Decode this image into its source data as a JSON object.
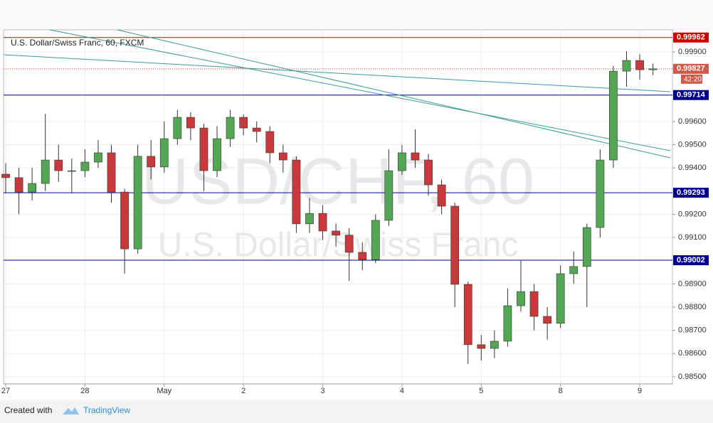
{
  "chart_data": {
    "type": "candlestick",
    "title": "U.S. Dollar/Swiss Franc, 60, FXCM",
    "watermark": "USD/CHF, 60",
    "watermark_subtitle": "U.S. Dollar/Swiss Franc",
    "x": [
      0,
      4,
      8,
      12,
      16,
      20,
      24,
      28,
      32,
      36,
      40,
      44,
      48,
      52,
      56,
      60,
      64,
      68,
      72,
      76,
      80,
      84,
      88,
      92,
      96,
      100,
      104,
      108,
      112,
      116,
      120,
      124,
      128,
      132,
      136,
      140,
      144,
      148,
      152,
      156,
      160,
      164,
      168,
      172,
      176,
      180,
      184,
      188,
      192,
      196
    ],
    "open": [
      0.99373,
      0.99358,
      0.99296,
      0.99333,
      0.99434,
      0.99388,
      0.99388,
      0.99425,
      0.99465,
      0.99296,
      0.99051,
      0.9945,
      0.99404,
      0.99526,
      0.99618,
      0.99572,
      0.99388,
      0.99526,
      0.99618,
      0.99572,
      0.99557,
      0.99465,
      0.99434,
      0.99159,
      0.99204,
      0.99128,
      0.9911,
      0.99036,
      0.99005,
      0.99174,
      0.99388,
      0.99465,
      0.99434,
      0.99327,
      0.99235,
      0.98898,
      0.98638,
      0.98622,
      0.98653,
      0.98806,
      0.98867,
      0.9876,
      0.9873,
      0.98944,
      0.98975,
      0.99143,
      0.99434,
      0.99817,
      0.99863,
      0.99823
    ],
    "high": [
      0.9942,
      0.994,
      0.994,
      0.99633,
      0.995,
      0.9944,
      0.9948,
      0.9952,
      0.995,
      0.9931,
      0.995,
      0.9952,
      0.996,
      0.9965,
      0.9964,
      0.9959,
      0.9958,
      0.9965,
      0.9963,
      0.996,
      0.9958,
      0.995,
      0.9945,
      0.9927,
      0.9924,
      0.9916,
      0.9914,
      0.9908,
      0.992,
      0.9948,
      0.995,
      0.99566,
      0.9946,
      0.9935,
      0.9925,
      0.9891,
      0.9868,
      0.987,
      0.9888,
      0.99,
      0.989,
      0.988,
      0.9898,
      0.9904,
      0.9916,
      0.9948,
      0.9984,
      0.99903,
      0.9989,
      0.9985
    ],
    "low": [
      0.9929,
      0.992,
      0.9926,
      0.993,
      0.9934,
      0.9929,
      0.9936,
      0.994,
      0.9925,
      0.98944,
      0.9903,
      0.9935,
      0.9938,
      0.995,
      0.9952,
      0.993,
      0.9936,
      0.9949,
      0.9954,
      0.9951,
      0.9942,
      0.9938,
      0.9912,
      0.9912,
      0.9909,
      0.9906,
      0.98913,
      0.9896,
      0.9899,
      0.9915,
      0.9937,
      0.994,
      0.9928,
      0.992,
      0.988,
      0.98555,
      0.9857,
      0.9858,
      0.9863,
      0.9878,
      0.987,
      0.9866,
      0.9871,
      0.989,
      0.988,
      0.991,
      0.994,
      0.9975,
      0.9978,
      0.998
    ],
    "close": [
      0.99358,
      0.99296,
      0.99333,
      0.99434,
      0.99388,
      0.99388,
      0.99425,
      0.99465,
      0.99296,
      0.99051,
      0.9945,
      0.99404,
      0.99526,
      0.99618,
      0.99572,
      0.99388,
      0.99526,
      0.99618,
      0.99572,
      0.99557,
      0.99465,
      0.99434,
      0.99159,
      0.99204,
      0.99128,
      0.9911,
      0.99036,
      0.99005,
      0.99174,
      0.99388,
      0.99465,
      0.99434,
      0.99327,
      0.99235,
      0.98898,
      0.98638,
      0.98622,
      0.98653,
      0.98806,
      0.98867,
      0.9876,
      0.9873,
      0.98944,
      0.98975,
      0.99143,
      0.99434,
      0.99817,
      0.99863,
      0.99823,
      0.99827
    ],
    "up_color": "#53a653",
    "down_color": "#c9393b",
    "xlim": [
      -0.65,
      201.9
    ],
    "ylim": [
      0.98469,
      0.99995
    ],
    "xticks": [
      {
        "value": 0,
        "label": "27"
      },
      {
        "value": 24,
        "label": "28"
      },
      {
        "value": 48,
        "label": "May"
      },
      {
        "value": 72,
        "label": "2"
      },
      {
        "value": 96,
        "label": "3"
      },
      {
        "value": 120,
        "label": "4"
      },
      {
        "value": 144,
        "label": "5"
      },
      {
        "value": 168,
        "label": "8"
      },
      {
        "value": 192,
        "label": "9"
      }
    ],
    "yticks": [
      {
        "value": 0.985,
        "label": "0.98500"
      },
      {
        "value": 0.986,
        "label": "0.98600"
      },
      {
        "value": 0.987,
        "label": "0.98700"
      },
      {
        "value": 0.988,
        "label": "0.98800"
      },
      {
        "value": 0.989,
        "label": "0.98900"
      },
      {
        "value": 0.991,
        "label": "0.99100"
      },
      {
        "value": 0.992,
        "label": "0.99200"
      },
      {
        "value": 0.994,
        "label": "0.99400"
      },
      {
        "value": 0.995,
        "label": "0.99500"
      },
      {
        "value": 0.996,
        "label": "0.99600"
      },
      {
        "value": 0.999,
        "label": "0.99900"
      }
    ],
    "grid": true,
    "levels": [
      {
        "value": 0.99962,
        "color": "#d00000"
      },
      {
        "value": 0.99714,
        "color": "#00008b"
      },
      {
        "value": 0.99293,
        "color": "#00008b"
      },
      {
        "value": 0.99002,
        "color": "#00008b"
      }
    ],
    "last_price": 0.99827,
    "countdown": "42:20"
  },
  "footer": {
    "prefix": "Created with",
    "brand": "TradingView"
  }
}
